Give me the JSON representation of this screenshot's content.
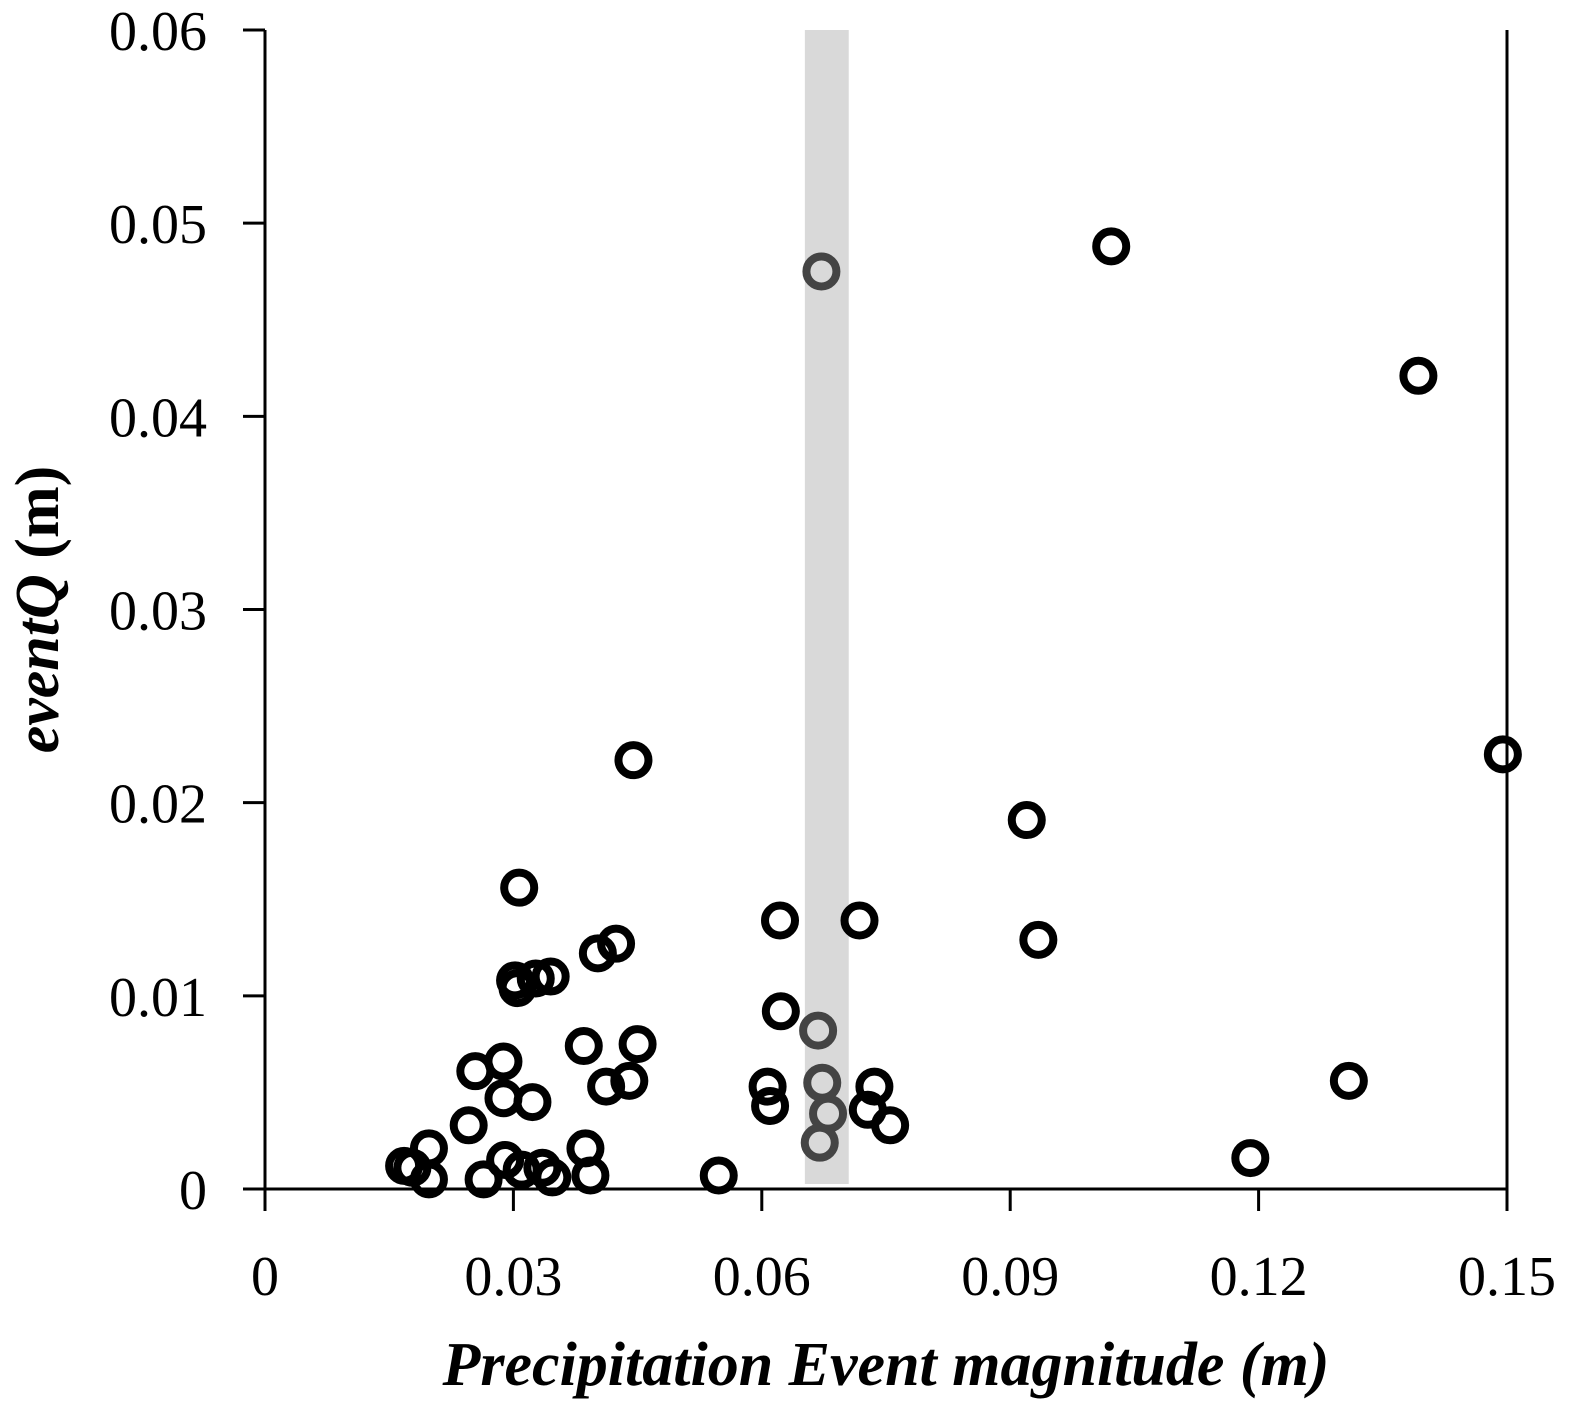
{
  "chart_data": {
    "type": "scatter",
    "xlabel": "Precipitation Event magnitude (m)",
    "ylabel_italic": "eventQ",
    "ylabel_unit": " (m)",
    "xlim": [
      0,
      0.15
    ],
    "ylim": [
      0,
      0.06
    ],
    "x_ticks": [
      0,
      0.03,
      0.06,
      0.09,
      0.12,
      0.15
    ],
    "x_tick_labels": [
      "0",
      "0.03",
      "0.06",
      "0.09",
      "0.12",
      "0.15"
    ],
    "y_ticks": [
      0,
      0.01,
      0.02,
      0.03,
      0.04,
      0.05,
      0.06
    ],
    "y_tick_labels": [
      "0",
      "0.01",
      "0.02",
      "0.03",
      "0.04",
      "0.05",
      "0.06"
    ],
    "grid": false,
    "highlight_band": {
      "x_min": 0.0652,
      "x_max": 0.0705,
      "color": "#d9d9d9"
    },
    "marker": {
      "style": "open-circle",
      "color": "#000000",
      "highlighted_color": "#444444"
    },
    "points": [
      {
        "x": 0.0168,
        "y": 0.0012
      },
      {
        "x": 0.0178,
        "y": 0.0011
      },
      {
        "x": 0.0198,
        "y": 0.0021
      },
      {
        "x": 0.0198,
        "y": 0.0005
      },
      {
        "x": 0.0246,
        "y": 0.0033
      },
      {
        "x": 0.0254,
        "y": 0.0061
      },
      {
        "x": 0.0264,
        "y": 0.0005
      },
      {
        "x": 0.0288,
        "y": 0.0066
      },
      {
        "x": 0.0288,
        "y": 0.0047
      },
      {
        "x": 0.029,
        "y": 0.0015
      },
      {
        "x": 0.0302,
        "y": 0.0108
      },
      {
        "x": 0.0305,
        "y": 0.0104
      },
      {
        "x": 0.0307,
        "y": 0.0156
      },
      {
        "x": 0.031,
        "y": 0.001
      },
      {
        "x": 0.0323,
        "y": 0.0045
      },
      {
        "x": 0.0327,
        "y": 0.0109
      },
      {
        "x": 0.0335,
        "y": 0.0011
      },
      {
        "x": 0.0345,
        "y": 0.011
      },
      {
        "x": 0.0347,
        "y": 0.0006
      },
      {
        "x": 0.0385,
        "y": 0.0074
      },
      {
        "x": 0.0387,
        "y": 0.0021
      },
      {
        "x": 0.0393,
        "y": 0.0007
      },
      {
        "x": 0.0402,
        "y": 0.0122
      },
      {
        "x": 0.0412,
        "y": 0.0053
      },
      {
        "x": 0.0424,
        "y": 0.0127
      },
      {
        "x": 0.044,
        "y": 0.0056
      },
      {
        "x": 0.0445,
        "y": 0.0222
      },
      {
        "x": 0.045,
        "y": 0.0075
      },
      {
        "x": 0.0548,
        "y": 0.0007
      },
      {
        "x": 0.0607,
        "y": 0.0053
      },
      {
        "x": 0.061,
        "y": 0.0043
      },
      {
        "x": 0.0622,
        "y": 0.0139
      },
      {
        "x": 0.0623,
        "y": 0.0092
      },
      {
        "x": 0.0668,
        "y": 0.0082,
        "highlighted": true
      },
      {
        "x": 0.067,
        "y": 0.0024,
        "highlighted": true
      },
      {
        "x": 0.0672,
        "y": 0.0475,
        "highlighted": true
      },
      {
        "x": 0.0673,
        "y": 0.0055,
        "highlighted": true
      },
      {
        "x": 0.068,
        "y": 0.0039,
        "highlighted": true
      },
      {
        "x": 0.0718,
        "y": 0.0139
      },
      {
        "x": 0.0728,
        "y": 0.0041
      },
      {
        "x": 0.0736,
        "y": 0.0053
      },
      {
        "x": 0.0755,
        "y": 0.0033
      },
      {
        "x": 0.092,
        "y": 0.0191
      },
      {
        "x": 0.0934,
        "y": 0.0129
      },
      {
        "x": 0.1022,
        "y": 0.0488
      },
      {
        "x": 0.119,
        "y": 0.0016
      },
      {
        "x": 0.1309,
        "y": 0.0056
      },
      {
        "x": 0.1393,
        "y": 0.0421
      },
      {
        "x": 0.1495,
        "y": 0.0225
      }
    ]
  }
}
